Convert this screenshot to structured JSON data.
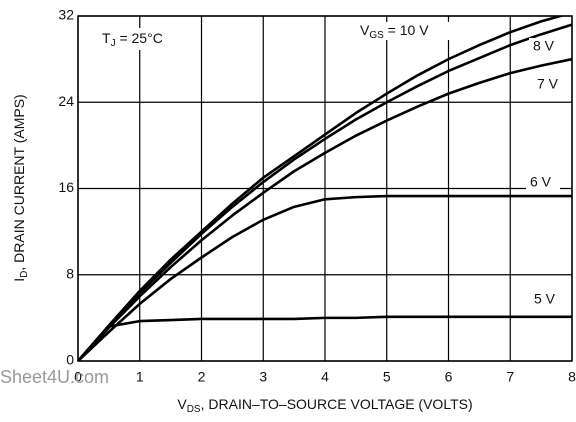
{
  "chart_data": {
    "type": "line",
    "annotation": {
      "main": "T",
      "sub": "J",
      "rest": " = 25°C"
    },
    "xlabel": {
      "main": "V",
      "sub": "DS",
      "rest": ", DRAIN–TO–SOURCE VOLTAGE (VOLTS)"
    },
    "ylabel": {
      "main": "I",
      "sub": "D",
      "rest": ", DRAIN CURRENT (AMPS)"
    },
    "watermark": "Sheet4U.com",
    "x": [
      0,
      0.5,
      1,
      1.5,
      2,
      2.5,
      3,
      3.5,
      4,
      4.5,
      5,
      5.5,
      6,
      6.5,
      7,
      7.5,
      8
    ],
    "series": [
      {
        "name": {
          "main": "V",
          "sub": "GS",
          "rest": " = 10 V"
        },
        "color": "#000000",
        "values": [
          0,
          3.3,
          6.5,
          9.4,
          12,
          14.6,
          17,
          19,
          21,
          23,
          24.8,
          26.5,
          28,
          29.3,
          30.5,
          31.5,
          32.3
        ]
      },
      {
        "name": "8 V",
        "color": "#000000",
        "values": [
          0,
          3.2,
          6.3,
          9.1,
          11.8,
          14.3,
          16.6,
          18.7,
          20.6,
          22.4,
          24,
          25.5,
          26.9,
          28.1,
          29.3,
          30.3,
          31.2
        ]
      },
      {
        "name": "7 V",
        "color": "#000000",
        "values": [
          0,
          3.1,
          6,
          8.7,
          11.2,
          13.5,
          15.6,
          17.6,
          19.3,
          20.9,
          22.3,
          23.6,
          24.8,
          25.8,
          26.7,
          27.4,
          28
        ]
      },
      {
        "name": "6 V",
        "color": "#000000",
        "values": [
          0,
          2.7,
          5.3,
          7.6,
          9.6,
          11.5,
          13.1,
          14.3,
          15,
          15.2,
          15.3,
          15.3,
          15.3,
          15.3,
          15.3,
          15.3,
          15.3
        ]
      },
      {
        "name": "5 V",
        "color": "#000000",
        "values": [
          0,
          3.2,
          3.7,
          3.8,
          3.9,
          3.9,
          3.9,
          3.9,
          4,
          4,
          4.1,
          4.1,
          4.1,
          4.1,
          4.1,
          4.1,
          4.1
        ]
      }
    ],
    "xlim": [
      0,
      8
    ],
    "xticks": [
      0,
      1,
      2,
      3,
      4,
      5,
      6,
      7,
      8
    ],
    "ylim": [
      0,
      32
    ],
    "yticks": [
      0,
      8,
      16,
      24,
      32
    ],
    "grid": true
  }
}
